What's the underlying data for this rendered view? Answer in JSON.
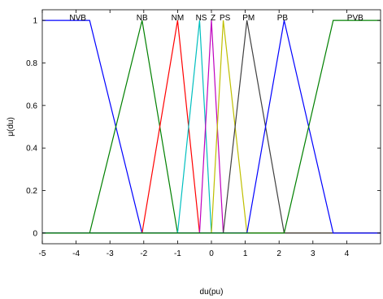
{
  "chart_data": {
    "type": "line",
    "title": "",
    "xlabel": "du(pu)",
    "ylabel": "μ(du)",
    "xlim": [
      -5,
      5
    ],
    "ylim": [
      -0.05,
      1.05
    ],
    "xticks": [
      "-5",
      "-4",
      "-3",
      "-2",
      "-1",
      "0",
      "1",
      "2",
      "3",
      "4"
    ],
    "xtick_values": [
      -5,
      -4,
      -3,
      -2,
      -1,
      0,
      1,
      2,
      3,
      4
    ],
    "yticks": [
      "0",
      "0.2",
      "0.4",
      "0.6",
      "0.8",
      "1"
    ],
    "ytick_values": [
      0,
      0.2,
      0.4,
      0.6,
      0.8,
      1
    ],
    "grid": false,
    "legend": "none",
    "series": [
      {
        "name": "NVB",
        "color": "#0000ff",
        "x": [
          -5,
          -3.6,
          -2.05,
          5
        ],
        "y": [
          1,
          1,
          0,
          0
        ]
      },
      {
        "name": "NB",
        "color": "#008000",
        "x": [
          -5,
          -3.6,
          -2.05,
          -1.0,
          5
        ],
        "y": [
          0,
          0,
          1,
          0,
          0
        ]
      },
      {
        "name": "NM",
        "color": "#ff0000",
        "x": [
          -5,
          -2.05,
          -1.0,
          -0.35,
          5
        ],
        "y": [
          0,
          0,
          1,
          0,
          0
        ]
      },
      {
        "name": "NS",
        "color": "#00bfbf",
        "x": [
          -5,
          -1.0,
          -0.35,
          0,
          5
        ],
        "y": [
          0,
          0,
          1,
          0,
          0
        ]
      },
      {
        "name": "Z",
        "color": "#bf00bf",
        "x": [
          -5,
          -0.35,
          0,
          0.35,
          5
        ],
        "y": [
          0,
          0,
          1,
          0,
          0
        ]
      },
      {
        "name": "PS",
        "color": "#bfbf00",
        "x": [
          -5,
          0,
          0.35,
          1.05,
          5
        ],
        "y": [
          0,
          0,
          1,
          0,
          0
        ]
      },
      {
        "name": "PM",
        "color": "#404040",
        "x": [
          -5,
          0.35,
          1.05,
          2.15,
          5
        ],
        "y": [
          0,
          0,
          1,
          0,
          0
        ]
      },
      {
        "name": "PB",
        "color": "#0000ff",
        "x": [
          -5,
          1.05,
          2.15,
          3.6,
          5
        ],
        "y": [
          0,
          0,
          1,
          0,
          0
        ]
      },
      {
        "name": "PVB",
        "color": "#008000",
        "x": [
          -5,
          2.15,
          3.6,
          5
        ],
        "y": [
          0,
          0,
          1,
          1
        ]
      }
    ],
    "mf_labels": [
      {
        "text": "NVB",
        "x": -3.95
      },
      {
        "text": "NB",
        "x": -2.05
      },
      {
        "text": "NM",
        "x": -1.0
      },
      {
        "text": "NS",
        "x": -0.3
      },
      {
        "text": "Z",
        "x": 0.05
      },
      {
        "text": "PS",
        "x": 0.4
      },
      {
        "text": "PM",
        "x": 1.1
      },
      {
        "text": "PB",
        "x": 2.1
      },
      {
        "text": "PVB",
        "x": 4.25
      }
    ]
  }
}
